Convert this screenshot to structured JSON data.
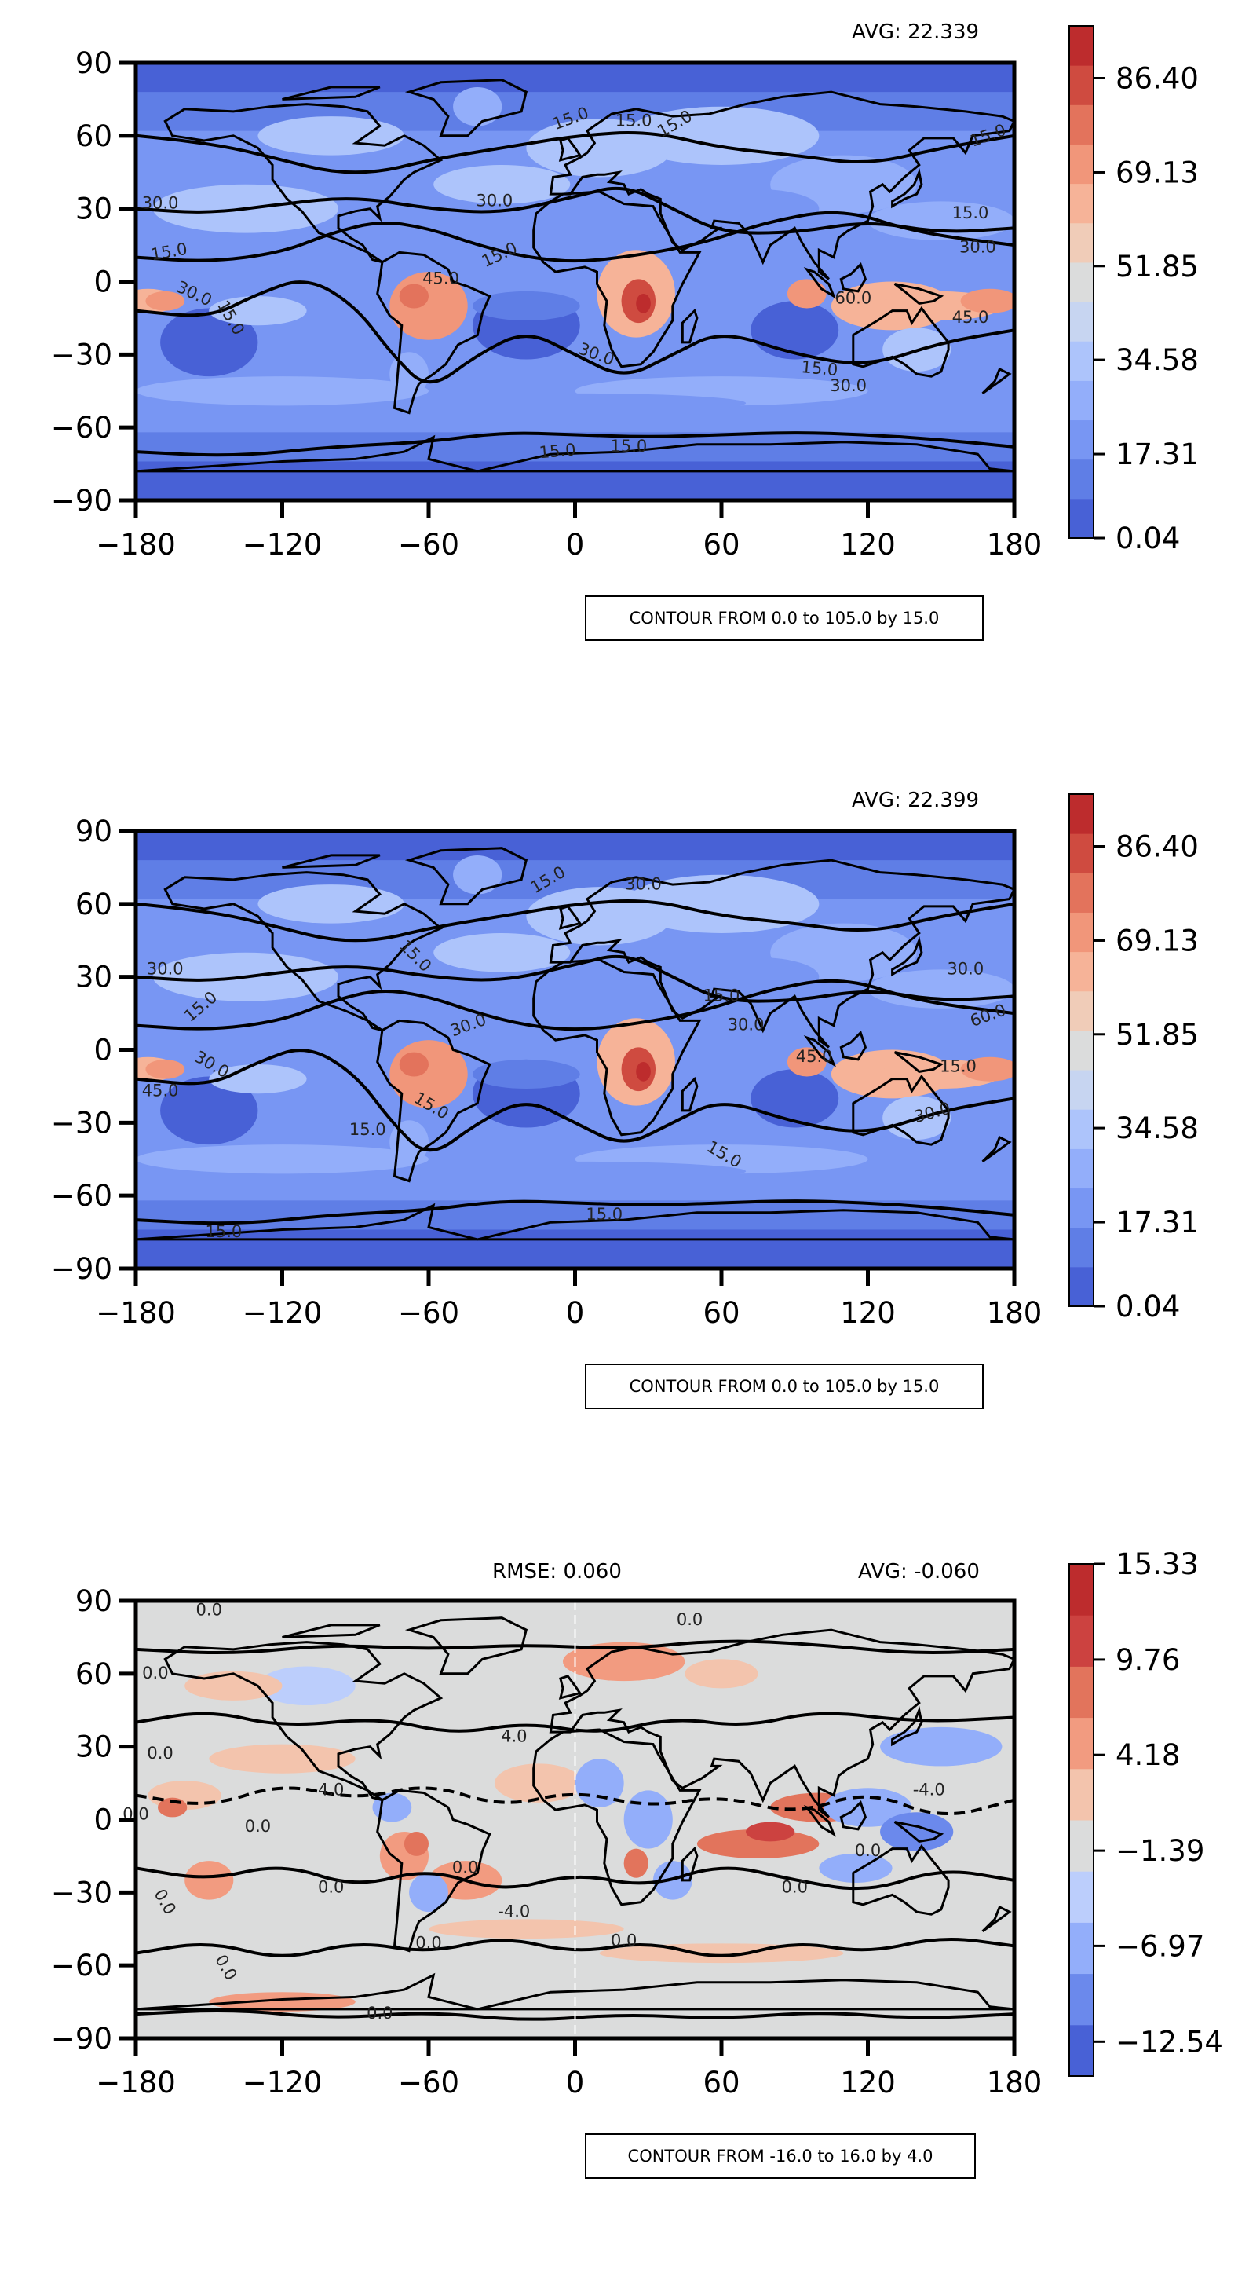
{
  "panels": [
    {
      "id": "top",
      "avg": "AVG: 22.339",
      "rmse": "",
      "contour_note": "CONTOUR FROM 0.0 to 105.0 by 15.0",
      "colorbar_ticks": [
        "86.40",
        "69.13",
        "51.85",
        "34.58",
        "17.31",
        "0.04"
      ],
      "contour_labels": [
        "15.0",
        "15.0",
        "30.0",
        "15.0",
        "30.0",
        "30.0",
        "15.0",
        "15.0",
        "30.0",
        "15.0",
        "45.0",
        "15.0",
        "15.0",
        "30.0",
        "15.0",
        "30.0",
        "60.0",
        "45.0",
        "15.0",
        "15.0"
      ]
    },
    {
      "id": "middle",
      "avg": "AVG: 22.399",
      "rmse": "",
      "contour_note": "CONTOUR FROM 0.0 to 105.0 by 15.0",
      "colorbar_ticks": [
        "86.40",
        "69.13",
        "51.85",
        "34.58",
        "17.31",
        "0.04"
      ],
      "contour_labels": [
        "15.0",
        "30.0",
        "30.0",
        "15.0",
        "30.0",
        "30.0",
        "45.0",
        "15.0",
        "15.0",
        "15.0",
        "30.0",
        "15.0",
        "15.0",
        "30.0",
        "30.0",
        "60.0",
        "45.0",
        "15.0",
        "15.0",
        "15.0"
      ]
    },
    {
      "id": "bottom",
      "avg": "AVG: -0.060",
      "rmse": "RMSE: 0.060",
      "contour_note": "CONTOUR FROM -16.0 to 16.0 by 4.0",
      "colorbar_ticks": [
        "15.33",
        "9.76",
        "4.18",
        "−1.39",
        "−6.97",
        "−12.54"
      ],
      "contour_labels": [
        "0.0",
        "0.0",
        "0.0",
        "0.0",
        "4.0",
        "0.0",
        "0.0",
        "4.0",
        "0.0",
        "0.0",
        "0.0",
        "0.0",
        "0.0",
        "-4.0",
        "-4.0",
        "0.0",
        "0.0",
        "0.0",
        "0.0"
      ]
    }
  ],
  "axes": {
    "x_ticks": [
      "−180",
      "−120",
      "−60",
      "0",
      "60",
      "120",
      "180"
    ],
    "y_ticks": [
      "90",
      "60",
      "30",
      "0",
      "−30",
      "−60",
      "−90"
    ]
  },
  "colormaps": {
    "field": [
      "#4861d6",
      "#5f7ee6",
      "#7896f3",
      "#93aefa",
      "#adc4fb",
      "#c7d5f1",
      "#dbdcdc",
      "#f0ccb8",
      "#f6b398",
      "#f1967a",
      "#e3735c",
      "#cf4b40",
      "#bd2c2d"
    ],
    "diff": [
      "#4861d6",
      "#6b89ec",
      "#93aefa",
      "#bccefc",
      "#dbdcdc",
      "#f3c4ad",
      "#f29b80",
      "#e2745c",
      "#cc4240",
      "#bd2c2d"
    ]
  },
  "colors": {
    "ocean_base": "#7896f3",
    "polar": "#4861d6",
    "diff_base": "#dbdcdc",
    "contour": "#000000"
  }
}
